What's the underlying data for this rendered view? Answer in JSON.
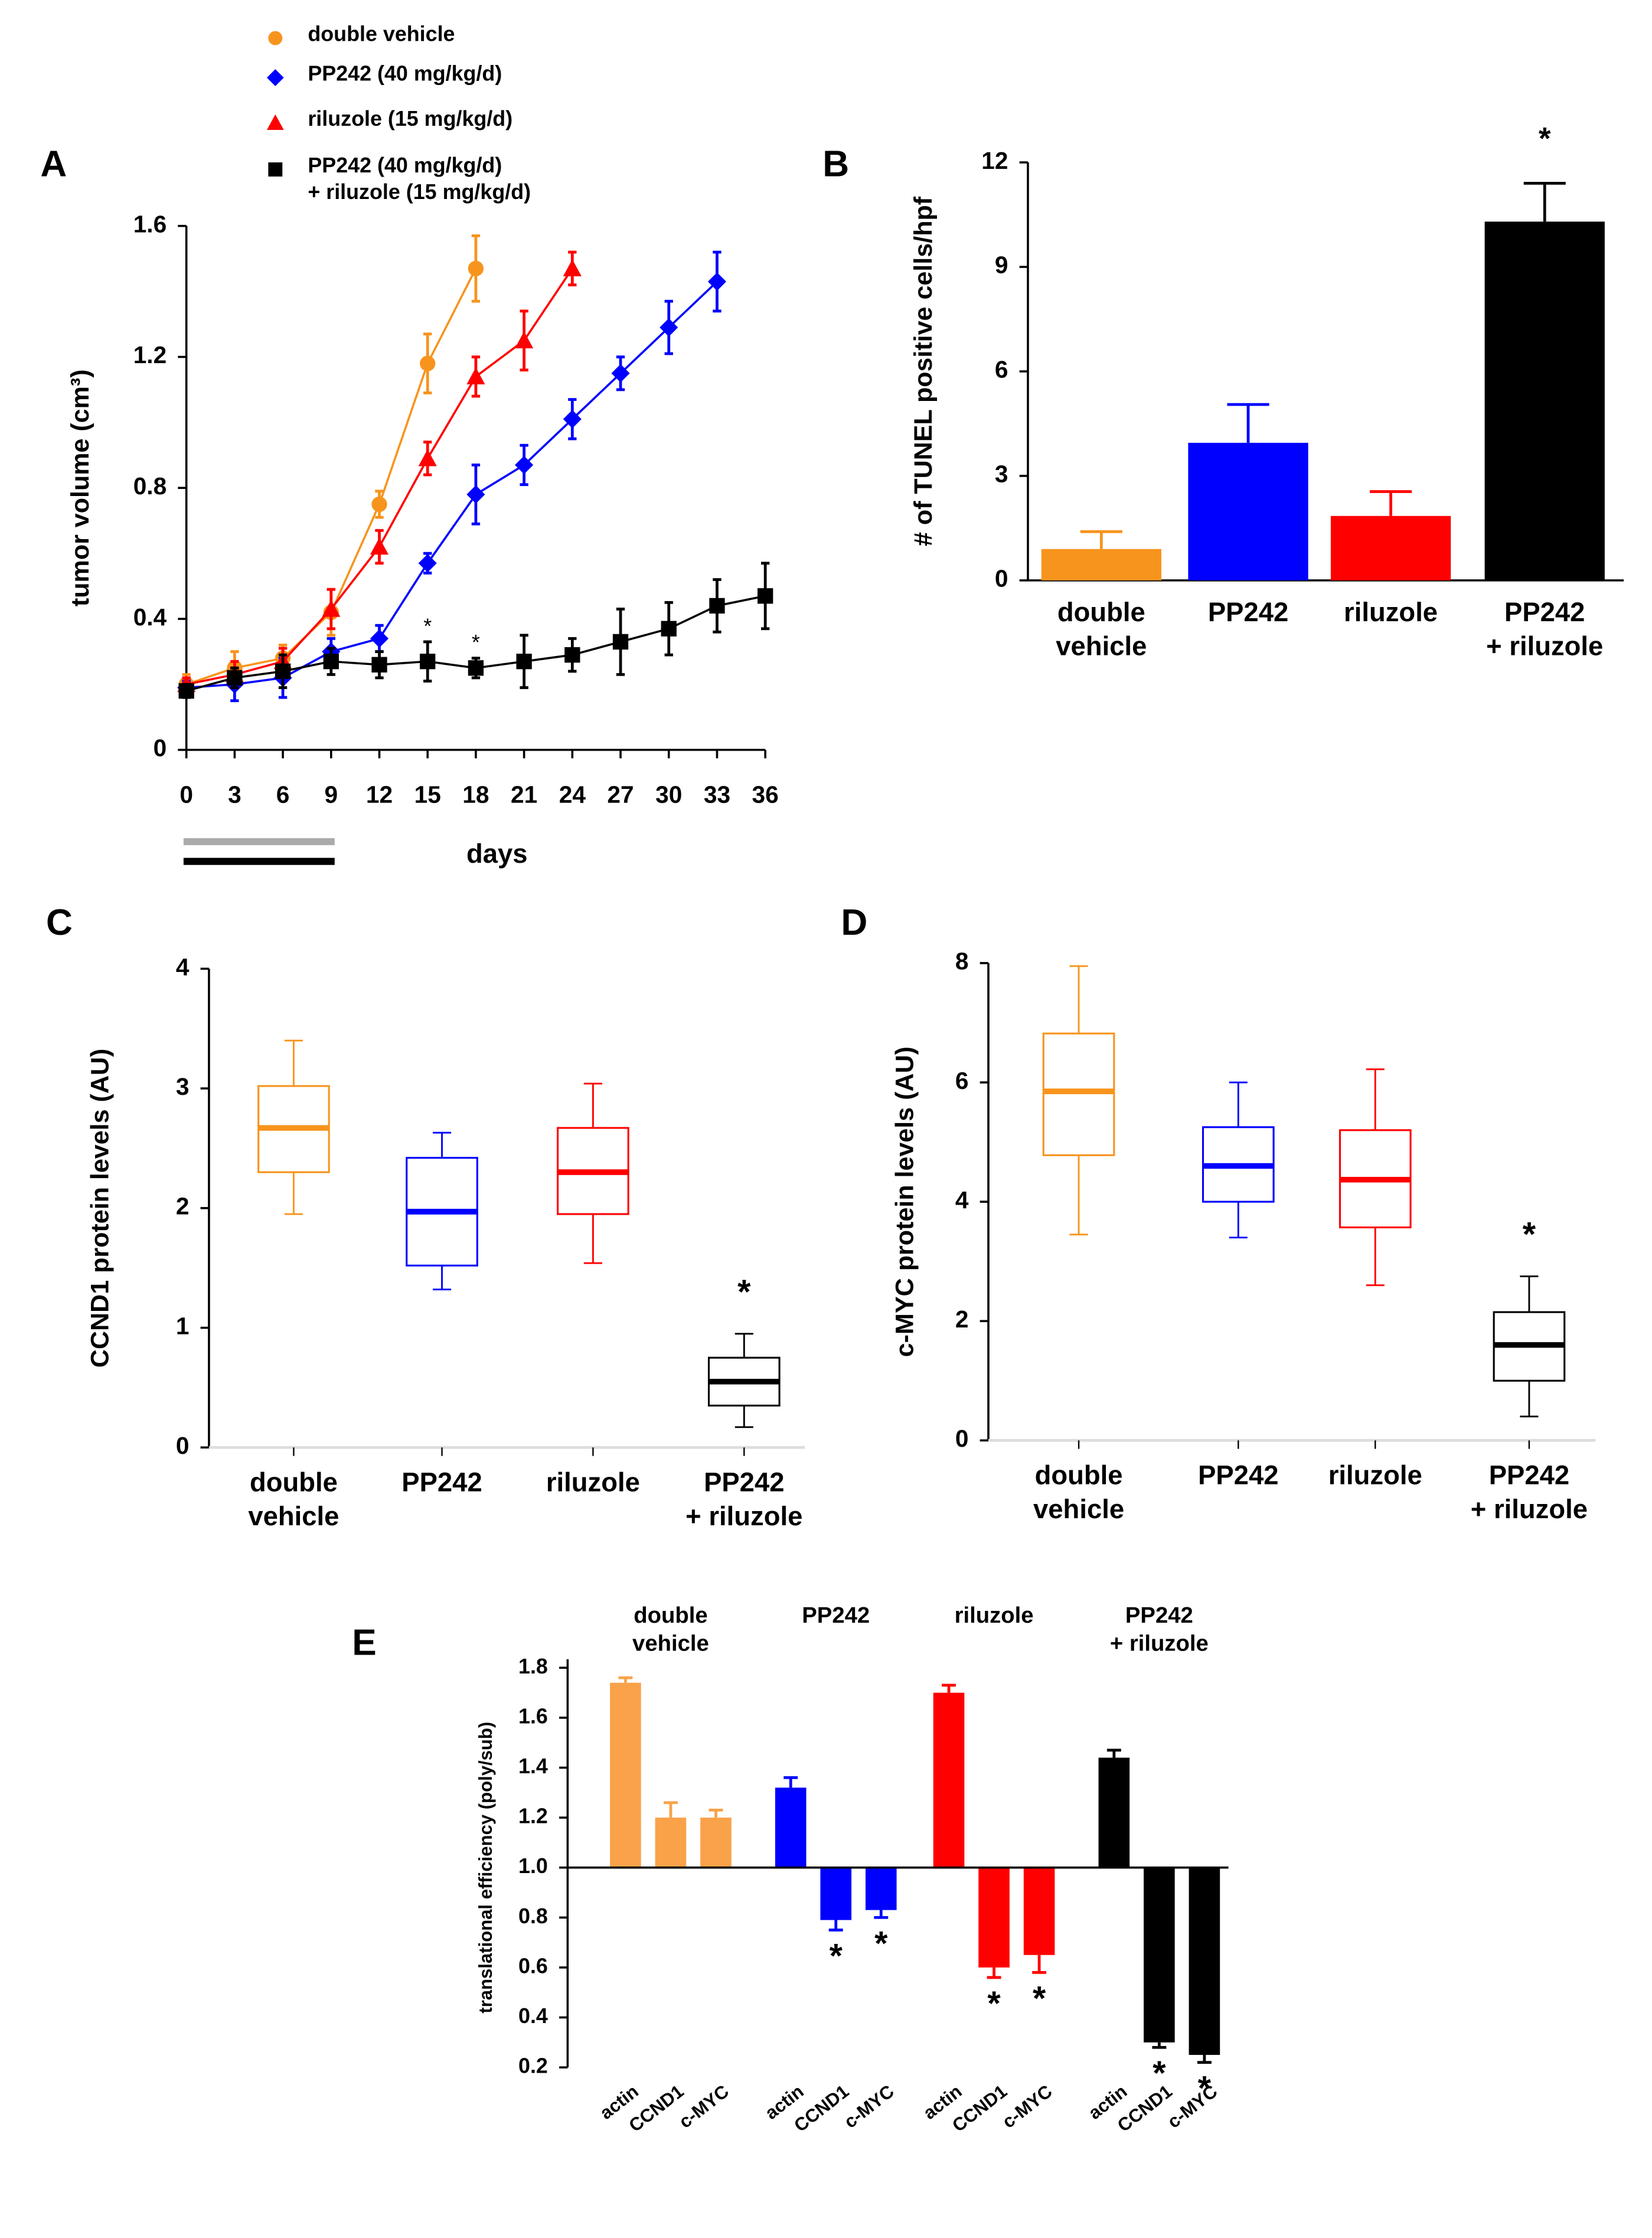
{
  "chart_data": [
    {
      "type": "line",
      "label": "A",
      "xlabel": "days",
      "ylabel": "tumor volume (cm³)",
      "xlim": [
        0,
        36
      ],
      "xticks": [
        0,
        3,
        6,
        9,
        12,
        15,
        18,
        21,
        24,
        27,
        30,
        33,
        36
      ],
      "ylim": [
        0,
        1.6
      ],
      "yticks": [
        0,
        0.4,
        0.8,
        1.2,
        1.6
      ],
      "series": [
        {
          "name": "double vehicle",
          "color": "#f7941d",
          "marker": "circle",
          "x": [
            0,
            3,
            6,
            9,
            12,
            15,
            18
          ],
          "values": [
            0.2,
            0.25,
            0.28,
            0.42,
            0.75,
            1.18,
            1.47
          ],
          "errors": [
            0.03,
            0.05,
            0.04,
            0.07,
            0.04,
            0.09,
            0.1
          ]
        },
        {
          "name": "PP242 (40 mg/kg/d)",
          "color": "#0000ff",
          "marker": "diamond",
          "x": [
            0,
            3,
            6,
            9,
            12,
            15,
            18,
            21,
            24,
            27,
            30,
            33
          ],
          "values": [
            0.19,
            0.2,
            0.22,
            0.3,
            0.34,
            0.57,
            0.78,
            0.87,
            1.01,
            1.15,
            1.29,
            1.43
          ],
          "errors": [
            0.02,
            0.05,
            0.06,
            0.04,
            0.04,
            0.03,
            0.09,
            0.06,
            0.06,
            0.05,
            0.08,
            0.09
          ]
        },
        {
          "name": "riluzole (15 mg/kg/d)",
          "color": "#ff0000",
          "marker": "triangle",
          "x": [
            0,
            3,
            6,
            9,
            12,
            15,
            18,
            21,
            24
          ],
          "values": [
            0.2,
            0.23,
            0.27,
            0.43,
            0.62,
            0.89,
            1.14,
            1.25,
            1.47
          ],
          "errors": [
            0.02,
            0.04,
            0.04,
            0.06,
            0.05,
            0.05,
            0.06,
            0.09,
            0.05
          ]
        },
        {
          "name": "PP242 (40 mg/kg/d)\n+ riluzole (15 mg/kg/d)",
          "color": "#000000",
          "marker": "square",
          "x": [
            0,
            3,
            6,
            9,
            12,
            15,
            18,
            21,
            24,
            27,
            30,
            33,
            36
          ],
          "values": [
            0.18,
            0.22,
            0.24,
            0.27,
            0.26,
            0.27,
            0.25,
            0.27,
            0.29,
            0.33,
            0.37,
            0.44,
            0.47
          ],
          "errors": [
            0.02,
            0.03,
            0.05,
            0.04,
            0.04,
            0.06,
            0.03,
            0.08,
            0.05,
            0.1,
            0.08,
            0.08,
            0.1
          ]
        }
      ],
      "annotations": [
        {
          "text": "*",
          "x": 15
        },
        {
          "text": "*",
          "x": 18
        }
      ]
    },
    {
      "type": "bar",
      "label": "B",
      "ylabel": "# of TUNEL positive cells/hpf",
      "categories": [
        "double\nvehicle",
        "PP242",
        "riluzole",
        "PP242\n+ riluzole"
      ],
      "values": [
        0.9,
        3.95,
        1.85,
        10.3
      ],
      "errors": [
        0.5,
        1.1,
        0.7,
        1.1
      ],
      "colors": [
        "#f7941d",
        "#0000ff",
        "#ff0000",
        "#000000"
      ],
      "ylim": [
        0,
        12
      ],
      "yticks": [
        0,
        3,
        6,
        9,
        12
      ],
      "annotations": [
        {
          "text": "*",
          "category": "PP242\n+ riluzole"
        }
      ]
    },
    {
      "type": "box",
      "label": "C",
      "ylabel": "CCND1 protein levels (AU)",
      "categories": [
        "double\nvehicle",
        "PP242",
        "riluzole",
        "PP242\n+ riluzole"
      ],
      "boxes": [
        {
          "color": "#f7941d",
          "min": 1.95,
          "q1": 2.3,
          "median": 2.67,
          "q3": 3.02,
          "max": 3.4
        },
        {
          "color": "#0000ff",
          "min": 1.32,
          "q1": 1.52,
          "median": 1.97,
          "q3": 2.42,
          "max": 2.63
        },
        {
          "color": "#ff0000",
          "min": 1.54,
          "q1": 1.95,
          "median": 2.3,
          "q3": 2.67,
          "max": 3.04
        },
        {
          "color": "#000000",
          "min": 0.17,
          "q1": 0.35,
          "median": 0.55,
          "q3": 0.75,
          "max": 0.95
        }
      ],
      "ylim": [
        0,
        4
      ],
      "yticks": [
        0,
        1,
        2,
        3,
        4
      ],
      "annotations": [
        {
          "text": "*",
          "category": "PP242\n+ riluzole"
        }
      ]
    },
    {
      "type": "box",
      "label": "D",
      "ylabel": "c-MYC protein levels (AU)",
      "categories": [
        "double\nvehicle",
        "PP242",
        "riluzole",
        "PP242\n+ riluzole"
      ],
      "boxes": [
        {
          "color": "#f7941d",
          "min": 3.45,
          "q1": 4.78,
          "median": 5.85,
          "q3": 6.82,
          "max": 7.95
        },
        {
          "color": "#0000ff",
          "min": 3.4,
          "q1": 4.0,
          "median": 4.6,
          "q3": 5.25,
          "max": 6.0
        },
        {
          "color": "#ff0000",
          "min": 2.6,
          "q1": 3.57,
          "median": 4.37,
          "q3": 5.2,
          "max": 6.22
        },
        {
          "color": "#000000",
          "min": 0.4,
          "q1": 1.0,
          "median": 1.6,
          "q3": 2.15,
          "max": 2.75
        }
      ],
      "ylim": [
        0,
        8
      ],
      "yticks": [
        0,
        2,
        4,
        6,
        8
      ],
      "annotations": [
        {
          "text": "*",
          "category": "PP242\n+ riluzole"
        }
      ]
    },
    {
      "type": "grouped_bar",
      "label": "E",
      "ylabel": "translational efficiency (poly/sub)",
      "categories": [
        "actin",
        "CCND1",
        "c-MYC"
      ],
      "baseline": 1,
      "series": [
        {
          "name": "double\nvehicle",
          "color": "#f9a24a",
          "values": [
            1.74,
            1.2,
            1.2
          ],
          "errors": [
            0.02,
            0.06,
            0.03
          ]
        },
        {
          "name": "PP242",
          "color": "#0000ff",
          "values": [
            1.32,
            0.79,
            0.83
          ],
          "errors": [
            0.04,
            0.04,
            0.03
          ]
        },
        {
          "name": "riluzole",
          "color": "#ff0000",
          "values": [
            1.7,
            0.6,
            0.65
          ],
          "errors": [
            0.03,
            0.04,
            0.07
          ]
        },
        {
          "name": "PP242\n+ riluzole",
          "color": "#000000",
          "values": [
            1.44,
            0.3,
            0.25
          ],
          "errors": [
            0.03,
            0.02,
            0.03
          ]
        }
      ],
      "ylim": [
        0.2,
        1.8
      ],
      "yticks": [
        0.2,
        0.4,
        0.6,
        0.8,
        {
          "value": 1,
          "label": "1.0"
        },
        1.2,
        1.4,
        1.6,
        1.8
      ],
      "annotations": [
        {
          "text": "*",
          "series": "PP242",
          "category": "CCND1"
        },
        {
          "text": "*",
          "series": "PP242",
          "category": "c-MYC"
        },
        {
          "text": "*",
          "series": "riluzole",
          "category": "CCND1"
        },
        {
          "text": "*",
          "series": "riluzole",
          "category": "c-MYC"
        },
        {
          "text": "*",
          "series": "PP242\n+ riluzole",
          "category": "CCND1"
        },
        {
          "text": "*",
          "series": "PP242\n+ riluzole",
          "category": "c-MYC"
        }
      ]
    }
  ]
}
